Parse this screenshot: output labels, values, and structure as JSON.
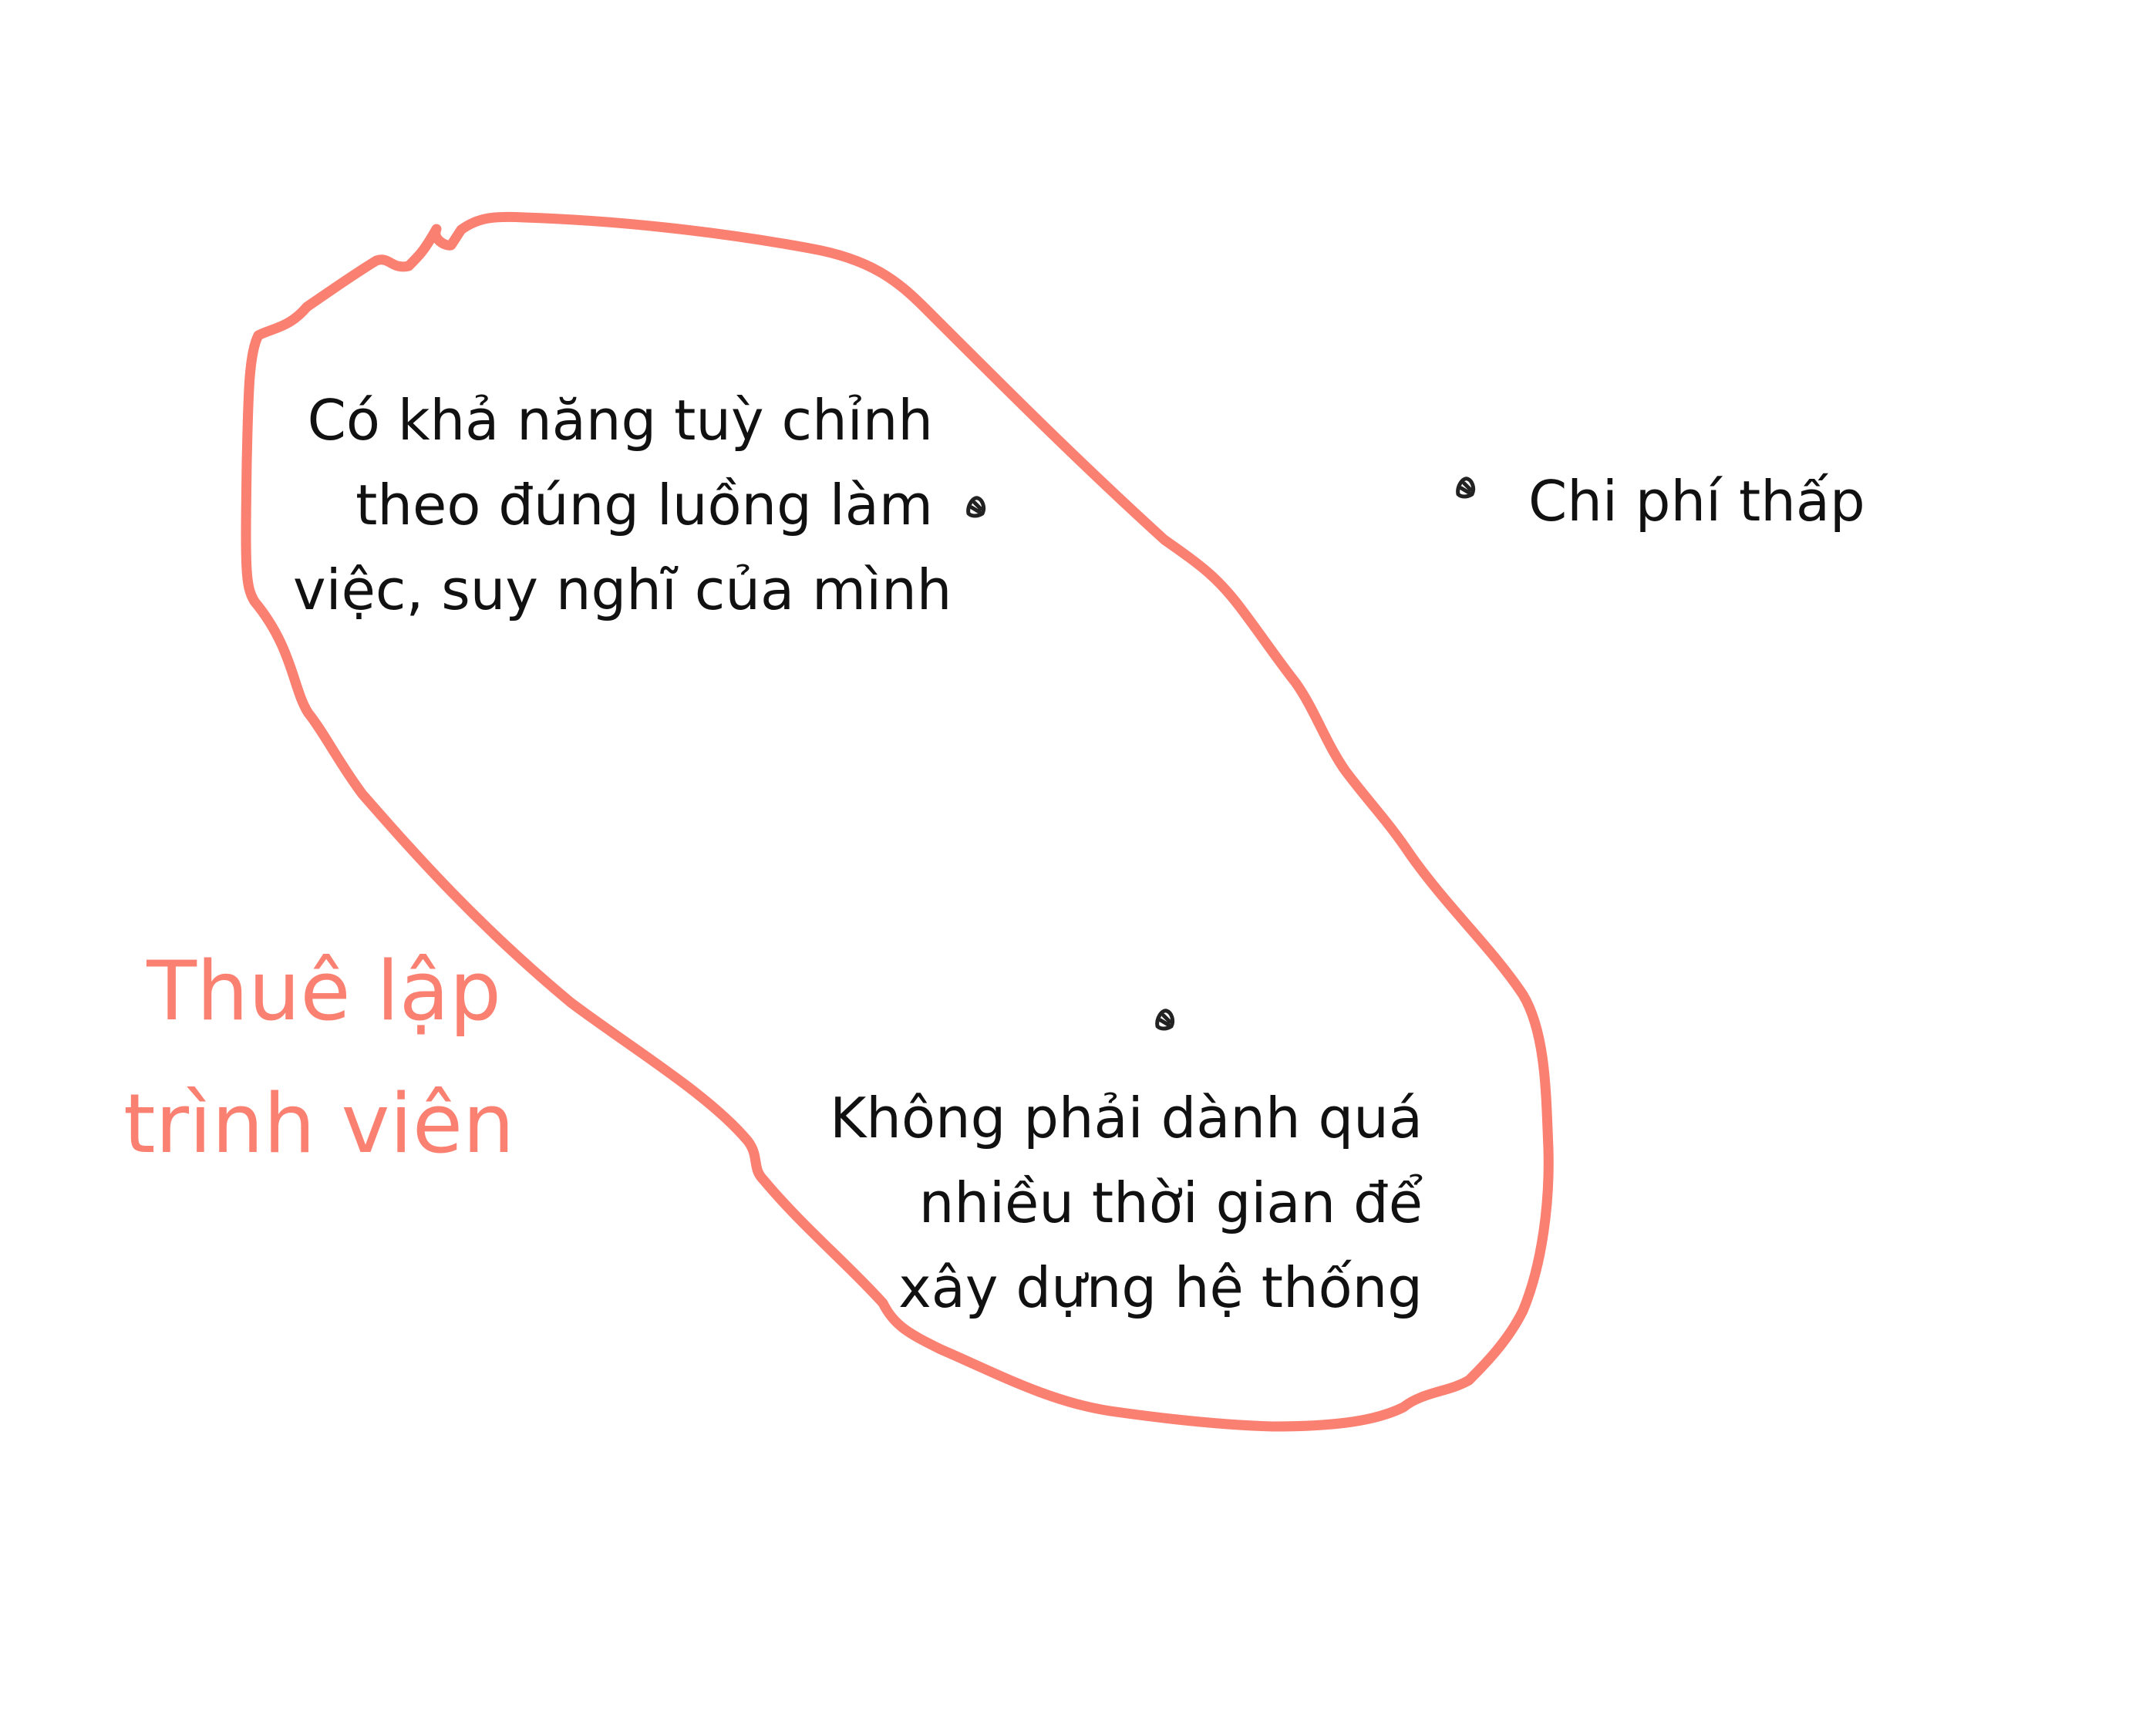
{
  "colors": {
    "accent": "#fa8072",
    "ink": "#111111",
    "background": "#ffffff"
  },
  "diagram": {
    "cluster_label": {
      "lines": [
        "Thuê lập",
        "trình viên"
      ]
    },
    "notes": [
      {
        "lines": [
          "Có khả năng tuỳ chỉnh",
          "theo đúng luồng làm",
          "việc, suy nghĩ của mình"
        ],
        "inside_cluster": true,
        "bullet_icon": "rock-icon"
      },
      {
        "lines": [
          "Chi phí thấp"
        ],
        "inside_cluster": false,
        "bullet_icon": "rock-icon"
      },
      {
        "lines": [
          "Không phải dành quá",
          "nhiều thời gian để",
          "xây dựng hệ thống"
        ],
        "inside_cluster": true,
        "bullet_icon": "rock-icon"
      }
    ]
  }
}
